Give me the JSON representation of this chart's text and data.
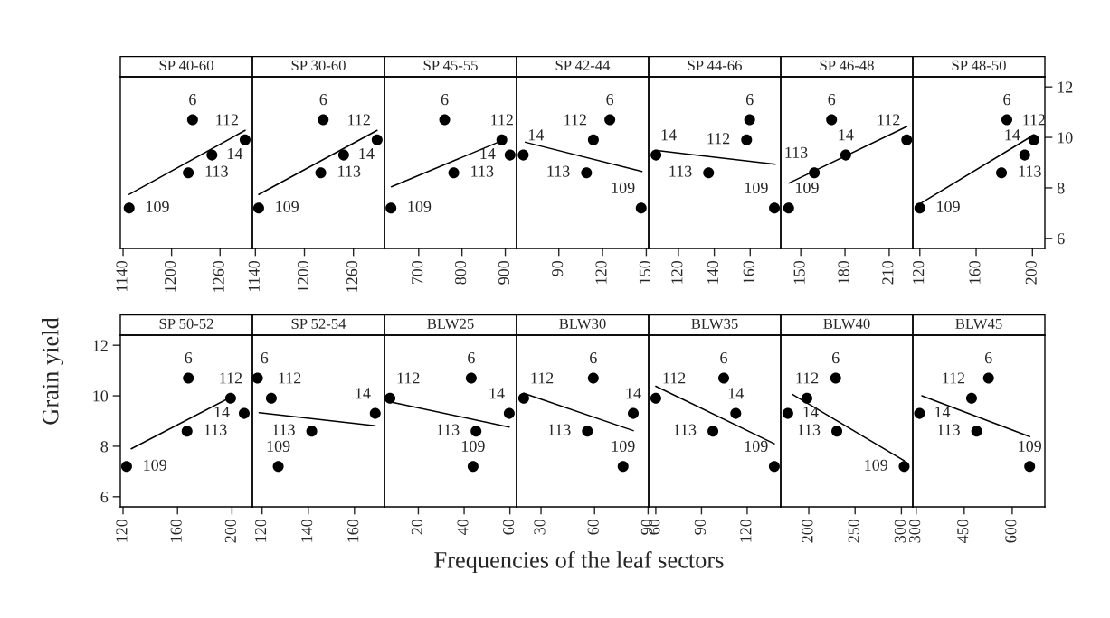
{
  "chart_data": [
    {
      "type": "scatter",
      "title": "SP 40-60",
      "tick_labels": "x",
      "xlim": [
        1136.6,
        1300
      ],
      "xticks": [
        1140,
        1200,
        1260
      ],
      "ylim": [
        5.6,
        12.4
      ],
      "yticks": [
        6,
        8,
        10,
        12
      ],
      "series": [
        {
          "marker": "circle",
          "color": "#000000",
          "x": [
            1147.5,
            1220.7,
            1226,
            1250,
            1291
          ],
          "values": [
            7.2,
            8.6,
            10.7,
            9.3,
            9.9
          ]
        },
        {
          "type": "line",
          "color": "#000000",
          "x": [
            1147.5,
            1291
          ],
          "values": [
            7.74,
            10.28
          ]
        }
      ],
      "annotations": [
        {
          "text": "109",
          "x": 1147.5,
          "y": 7.2
        },
        {
          "text": "113",
          "x": 1220.7,
          "y": 8.6
        },
        {
          "text": "6",
          "x": 1226,
          "y": 10.7
        },
        {
          "text": "14",
          "x": 1250,
          "y": 9.3
        },
        {
          "text": "112",
          "x": 1291,
          "y": 9.9
        }
      ]
    },
    {
      "type": "scatter",
      "title": "SP 30-60",
      "tick_labels": "x",
      "xlim": [
        1136.3,
        1298
      ],
      "xticks": [
        1140,
        1200,
        1260
      ],
      "ylim": [
        5.6,
        12.4
      ],
      "yticks": [
        6,
        8,
        10,
        12
      ],
      "series": [
        {
          "marker": "circle",
          "color": "#000000",
          "x": [
            1144,
            1220,
            1223,
            1248,
            1289
          ],
          "values": [
            7.2,
            8.6,
            10.7,
            9.3,
            9.9
          ]
        },
        {
          "type": "line",
          "color": "#000000",
          "x": [
            1144,
            1289
          ],
          "values": [
            7.74,
            10.28
          ]
        }
      ],
      "annotations": [
        {
          "text": "109",
          "x": 1144,
          "y": 7.2
        },
        {
          "text": "113",
          "x": 1220,
          "y": 8.6
        },
        {
          "text": "6",
          "x": 1223,
          "y": 10.7
        },
        {
          "text": "14",
          "x": 1248,
          "y": 9.3
        },
        {
          "text": "112",
          "x": 1289,
          "y": 9.9
        }
      ]
    },
    {
      "type": "scatter",
      "title": "SP 45-55",
      "tick_labels": "x",
      "xlim": [
        621,
        926
      ],
      "xticks": [
        700,
        800,
        900
      ],
      "ylim": [
        5.6,
        12.4
      ],
      "yticks": [
        6,
        8,
        10,
        12
      ],
      "series": [
        {
          "marker": "circle",
          "color": "#000000",
          "x": [
            636,
            781,
            760,
            911,
            892
          ],
          "values": [
            7.2,
            8.6,
            10.7,
            9.3,
            9.9
          ]
        },
        {
          "type": "line",
          "color": "#000000",
          "x": [
            637,
            895
          ],
          "values": [
            8.04,
            9.89
          ]
        }
      ],
      "annotations": [
        {
          "text": "109",
          "x": 636,
          "y": 7.2
        },
        {
          "text": "113",
          "x": 781,
          "y": 8.6
        },
        {
          "text": "6",
          "x": 760,
          "y": 10.7
        },
        {
          "text": "14",
          "x": 911,
          "y": 9.3
        },
        {
          "text": "112",
          "x": 892,
          "y": 9.9
        }
      ]
    },
    {
      "type": "scatter",
      "title": "SP 42-44",
      "tick_labels": "x",
      "xlim": [
        61,
        151.6
      ],
      "xticks": [
        90,
        120,
        150
      ],
      "ylim": [
        5.6,
        12.4
      ],
      "yticks": [
        6,
        8,
        10,
        12
      ],
      "series": [
        {
          "marker": "circle",
          "color": "#000000",
          "x": [
            146.5,
            109,
            125,
            65.6,
            113.7
          ],
          "values": [
            7.2,
            8.6,
            10.7,
            9.3,
            9.9
          ]
        },
        {
          "type": "line",
          "color": "#000000",
          "x": [
            67,
            147
          ],
          "values": [
            9.81,
            8.65
          ]
        }
      ],
      "annotations": [
        {
          "text": "109",
          "x": 146.5,
          "y": 7.2
        },
        {
          "text": "113",
          "x": 109,
          "y": 8.6
        },
        {
          "text": "6",
          "x": 125,
          "y": 10.7
        },
        {
          "text": "14",
          "x": 65.6,
          "y": 9.3
        },
        {
          "text": "112",
          "x": 113.7,
          "y": 9.9
        }
      ]
    },
    {
      "type": "scatter",
      "title": "SP 44-66",
      "tick_labels": "x",
      "xlim": [
        103.4,
        177
      ],
      "xticks": [
        120,
        140,
        160
      ],
      "ylim": [
        5.6,
        12.4
      ],
      "yticks": [
        6,
        8,
        10,
        12
      ],
      "series": [
        {
          "marker": "circle",
          "color": "#000000",
          "x": [
            173.5,
            136.8,
            159.7,
            107.5,
            158
          ],
          "values": [
            7.2,
            8.6,
            10.7,
            9.3,
            9.9
          ]
        },
        {
          "type": "line",
          "color": "#000000",
          "x": [
            108,
            174
          ],
          "values": [
            9.48,
            8.94
          ]
        }
      ],
      "annotations": [
        {
          "text": "109",
          "x": 173.5,
          "y": 7.2
        },
        {
          "text": "113",
          "x": 136.8,
          "y": 8.6
        },
        {
          "text": "6",
          "x": 159.7,
          "y": 10.7
        },
        {
          "text": "14",
          "x": 107.5,
          "y": 9.3
        },
        {
          "text": "112",
          "x": 158,
          "y": 9.9
        }
      ]
    },
    {
      "type": "scatter",
      "title": "SP 46-48",
      "tick_labels": "x",
      "xlim": [
        136.4,
        226
      ],
      "xticks": [
        150,
        180,
        210
      ],
      "ylim": [
        5.6,
        12.4
      ],
      "yticks": [
        6,
        8,
        10,
        12
      ],
      "series": [
        {
          "marker": "circle",
          "color": "#000000",
          "x": [
            141.8,
            159.2,
            170.9,
            180.5,
            221.9
          ],
          "values": [
            7.2,
            8.6,
            10.7,
            9.3,
            9.9
          ]
        },
        {
          "type": "line",
          "color": "#000000",
          "x": [
            142,
            222
          ],
          "values": [
            8.19,
            10.43
          ]
        }
      ],
      "annotations": [
        {
          "text": "109",
          "x": 141.8,
          "y": 7.2
        },
        {
          "text": "113",
          "x": 159.2,
          "y": 8.6
        },
        {
          "text": "6",
          "x": 170.9,
          "y": 10.7
        },
        {
          "text": "14",
          "x": 180.5,
          "y": 9.3
        },
        {
          "text": "112",
          "x": 221.9,
          "y": 9.9
        }
      ]
    },
    {
      "type": "scatter",
      "title": "SP 48-50",
      "xlim": [
        115,
        208.8
      ],
      "xticks": [
        120,
        160,
        200
      ],
      "ylim": [
        5.6,
        12.4
      ],
      "yticks": [
        6,
        8,
        10,
        12
      ],
      "series": [
        {
          "marker": "circle",
          "color": "#000000",
          "x": [
            120,
            178,
            181.8,
            194.5,
            201
          ],
          "values": [
            7.2,
            8.6,
            10.7,
            9.3,
            9.9
          ]
        },
        {
          "type": "line",
          "color": "#000000",
          "x": [
            120,
            201
          ],
          "values": [
            7.37,
            10.1
          ]
        }
      ],
      "annotations": [
        {
          "text": "109",
          "x": 120,
          "y": 7.2
        },
        {
          "text": "113",
          "x": 178,
          "y": 8.6
        },
        {
          "text": "6",
          "x": 181.8,
          "y": 10.7
        },
        {
          "text": "14",
          "x": 194.5,
          "y": 9.3
        },
        {
          "text": "112",
          "x": 201,
          "y": 9.9
        }
      ]
    },
    {
      "type": "scatter",
      "title": "SP 50-52",
      "ylabel": "Grain yield",
      "xlim": [
        118,
        215
      ],
      "xticks": [
        120,
        160,
        200
      ],
      "ylim": [
        5.6,
        12.4
      ],
      "yticks": [
        6,
        8,
        10,
        12
      ],
      "series": [
        {
          "marker": "circle",
          "color": "#000000",
          "x": [
            122.6,
            167,
            168,
            209,
            199
          ],
          "values": [
            7.2,
            8.6,
            10.7,
            9.3,
            9.9
          ]
        },
        {
          "type": "line",
          "color": "#000000",
          "x": [
            126,
            201
          ],
          "values": [
            7.9,
            10.0
          ]
        }
      ],
      "annotations": [
        {
          "text": "109",
          "x": 122.6,
          "y": 7.2
        },
        {
          "text": "113",
          "x": 167,
          "y": 8.6
        },
        {
          "text": "6",
          "x": 168,
          "y": 10.7
        },
        {
          "text": "14",
          "x": 209,
          "y": 9.3
        },
        {
          "text": "112",
          "x": 199,
          "y": 9.9
        }
      ]
    },
    {
      "type": "scatter",
      "title": "SP 52-54",
      "tick_labels": "x",
      "xlim": [
        115.8,
        173
      ],
      "xticks": [
        120,
        140,
        160
      ],
      "ylim": [
        5.6,
        12.4
      ],
      "yticks": [
        6,
        8,
        10,
        12
      ],
      "series": [
        {
          "marker": "circle",
          "color": "#000000",
          "x": [
            127,
            141.5,
            118,
            169,
            124
          ],
          "values": [
            7.2,
            8.6,
            10.7,
            9.3,
            9.9
          ]
        },
        {
          "type": "line",
          "color": "#000000",
          "x": [
            118.7,
            169
          ],
          "values": [
            9.33,
            8.81
          ]
        }
      ],
      "annotations": [
        {
          "text": "109",
          "x": 127,
          "y": 7.2
        },
        {
          "text": "113",
          "x": 141.5,
          "y": 8.6
        },
        {
          "text": "6",
          "x": 118,
          "y": 10.7
        },
        {
          "text": "14",
          "x": 169,
          "y": 9.3
        },
        {
          "text": "112",
          "x": 124,
          "y": 9.9
        }
      ]
    },
    {
      "type": "scatter",
      "title": "BLW25",
      "tick_labels": "x",
      "xlim": [
        5.2,
        62.9
      ],
      "xticks": [
        20,
        40,
        60
      ],
      "ylim": [
        5.6,
        12.4
      ],
      "yticks": [
        6,
        8,
        10,
        12
      ],
      "series": [
        {
          "marker": "circle",
          "color": "#000000",
          "x": [
            43.9,
            45.2,
            43.1,
            59.7,
            7.6
          ],
          "values": [
            7.2,
            8.6,
            10.7,
            9.3,
            9.9
          ]
        },
        {
          "type": "line",
          "color": "#000000",
          "x": [
            7.6,
            59.7
          ],
          "values": [
            9.76,
            8.76
          ]
        }
      ],
      "annotations": [
        {
          "text": "109",
          "x": 43.9,
          "y": 7.2
        },
        {
          "text": "113",
          "x": 45.2,
          "y": 8.6
        },
        {
          "text": "6",
          "x": 43.1,
          "y": 10.7
        },
        {
          "text": "14",
          "x": 59.7,
          "y": 9.3
        },
        {
          "text": "112",
          "x": 7.6,
          "y": 9.9
        }
      ]
    },
    {
      "type": "scatter",
      "title": "BLW30",
      "xlabel": "Frequencies of the leaf sectors",
      "tick_labels": "x",
      "xlim": [
        16.3,
        90.3
      ],
      "xticks": [
        30,
        60,
        90
      ],
      "ylim": [
        5.6,
        12.4
      ],
      "yticks": [
        6,
        8,
        10,
        12
      ],
      "series": [
        {
          "marker": "circle",
          "color": "#000000",
          "x": [
            76,
            56,
            59.3,
            81.7,
            20.3
          ],
          "values": [
            7.2,
            8.6,
            10.7,
            9.3,
            9.9
          ]
        },
        {
          "type": "line",
          "color": "#000000",
          "x": [
            20.3,
            81.7
          ],
          "values": [
            10.1,
            8.62
          ]
        }
      ],
      "annotations": [
        {
          "text": "109",
          "x": 76,
          "y": 7.2
        },
        {
          "text": "113",
          "x": 56,
          "y": 8.6
        },
        {
          "text": "6",
          "x": 59.3,
          "y": 10.7
        },
        {
          "text": "14",
          "x": 81.7,
          "y": 9.3
        },
        {
          "text": "112",
          "x": 20.3,
          "y": 9.9
        }
      ]
    },
    {
      "type": "scatter",
      "title": "BLW35",
      "tick_labels": "x",
      "xlim": [
        55.3,
        142
      ],
      "xticks": [
        60,
        90,
        120
      ],
      "ylim": [
        5.6,
        12.4
      ],
      "yticks": [
        6,
        8,
        10,
        12
      ],
      "series": [
        {
          "marker": "circle",
          "color": "#000000",
          "x": [
            137.8,
            97.5,
            104.6,
            112.5,
            60
          ],
          "values": [
            7.2,
            8.6,
            10.7,
            9.3,
            9.9
          ]
        },
        {
          "type": "line",
          "color": "#000000",
          "x": [
            60,
            137.8
          ],
          "values": [
            10.38,
            8.1
          ]
        }
      ],
      "annotations": [
        {
          "text": "109",
          "x": 137.8,
          "y": 7.2
        },
        {
          "text": "113",
          "x": 97.5,
          "y": 8.6
        },
        {
          "text": "6",
          "x": 104.6,
          "y": 10.7
        },
        {
          "text": "14",
          "x": 112.5,
          "y": 9.3
        },
        {
          "text": "112",
          "x": 60,
          "y": 9.9
        }
      ]
    },
    {
      "type": "scatter",
      "title": "BLW40",
      "tick_labels": "x",
      "xlim": [
        169.7,
        312.3
      ],
      "xticks": [
        200,
        250,
        300
      ],
      "ylim": [
        5.6,
        12.4
      ],
      "yticks": [
        6,
        8,
        10,
        12
      ],
      "series": [
        {
          "marker": "circle",
          "color": "#000000",
          "x": [
            303,
            230.3,
            229,
            177.4,
            198
          ],
          "values": [
            7.2,
            8.6,
            10.7,
            9.3,
            9.9
          ]
        },
        {
          "type": "line",
          "color": "#000000",
          "x": [
            182.6,
            303
          ],
          "values": [
            10.05,
            7.43
          ]
        }
      ],
      "annotations": [
        {
          "text": "109",
          "x": 303,
          "y": 7.2
        },
        {
          "text": "113",
          "x": 230.3,
          "y": 8.6
        },
        {
          "text": "6",
          "x": 229,
          "y": 10.7
        },
        {
          "text": "14",
          "x": 177.4,
          "y": 9.3
        },
        {
          "text": "112",
          "x": 198,
          "y": 9.9
        }
      ]
    },
    {
      "type": "scatter",
      "title": "BLW45",
      "tick_labels": "x",
      "xlim": [
        289.4,
        702
      ],
      "xticks": [
        300,
        450,
        600
      ],
      "ylim": [
        5.6,
        12.4
      ],
      "yticks": [
        6,
        8,
        10,
        12
      ],
      "series": [
        {
          "marker": "circle",
          "color": "#000000",
          "x": [
            654.6,
            489,
            526,
            310.6,
            473
          ],
          "values": [
            7.2,
            8.6,
            10.7,
            9.3,
            9.9
          ]
        },
        {
          "type": "line",
          "color": "#000000",
          "x": [
            317.6,
            654.6
          ],
          "values": [
            10.0,
            8.38
          ]
        }
      ],
      "annotations": [
        {
          "text": "109",
          "x": 654.6,
          "y": 7.2
        },
        {
          "text": "113",
          "x": 489,
          "y": 8.6
        },
        {
          "text": "6",
          "x": 526,
          "y": 10.7
        },
        {
          "text": "14",
          "x": 310.6,
          "y": 9.3
        },
        {
          "text": "112",
          "x": 473,
          "y": 9.9
        }
      ]
    }
  ]
}
